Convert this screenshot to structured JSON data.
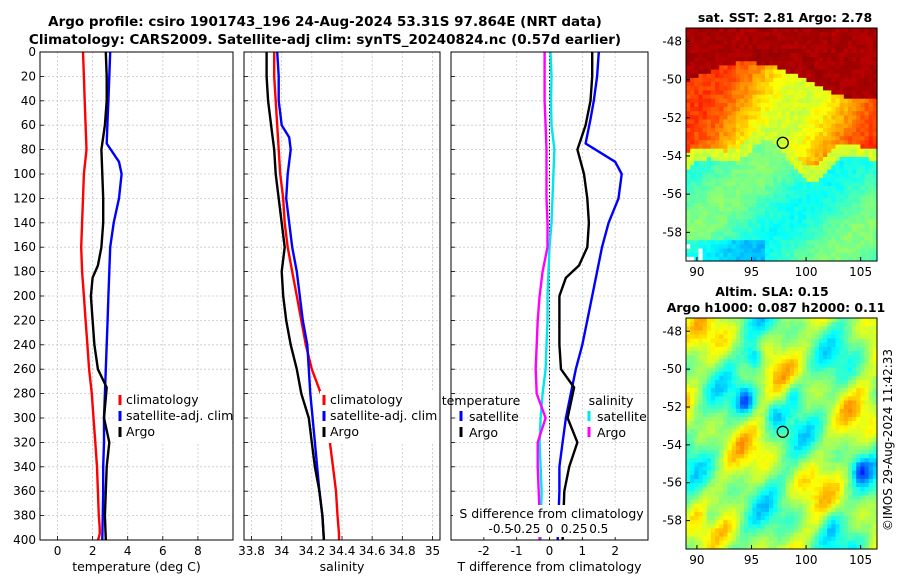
{
  "header": {
    "line1": "Argo profile: csiro 1901743_196 24-Aug-2024 53.31S 97.864E (NRT data)",
    "line2": "Climatology: CARS2009. Satellite-adj clim: synTS_20240824.nc (0.57d earlier)"
  },
  "colors": {
    "climatology": "#ff0000",
    "satellite": "#0000ff",
    "argo": "#000000",
    "sat_salinity": "#00e5ee",
    "argo_salinity": "#ff00ff"
  },
  "chart_data": [
    {
      "type": "line",
      "panel": "temperature",
      "xlabel": "temperature (deg C)",
      "xlim": [
        -1,
        10
      ],
      "xticks": [
        "0",
        "2",
        "4",
        "6",
        "8"
      ],
      "ylim": [
        0,
        400
      ],
      "yticks": [
        "0",
        "20",
        "40",
        "60",
        "80",
        "100",
        "120",
        "140",
        "160",
        "180",
        "200",
        "220",
        "240",
        "260",
        "280",
        "300",
        "320",
        "340",
        "360",
        "380",
        "400"
      ],
      "legend": [
        "climatology",
        "satellite-adj. clim",
        "Argo"
      ],
      "series": [
        {
          "name": "climatology",
          "x": [
            1.45,
            1.5,
            1.55,
            1.6,
            1.65,
            1.5,
            1.45,
            1.4,
            1.35,
            1.4,
            1.5,
            1.6,
            1.7,
            1.8,
            1.95,
            2.05,
            2.15,
            2.25,
            2.3,
            2.35,
            2.4,
            2.4,
            2.35,
            2.3,
            2.3
          ],
          "y": [
            0,
            20,
            40,
            60,
            80,
            100,
            120,
            140,
            160,
            180,
            200,
            220,
            240,
            260,
            280,
            300,
            320,
            340,
            360,
            380,
            390,
            395,
            398,
            400,
            400
          ]
        },
        {
          "name": "satellite-adj. clim",
          "x": [
            3.0,
            2.95,
            2.9,
            2.85,
            2.8,
            3.5,
            3.65,
            3.5,
            3.2,
            3.0,
            2.95,
            2.9,
            2.85,
            2.8,
            2.75,
            2.7,
            2.65,
            2.65,
            2.6,
            2.6,
            2.55
          ],
          "y": [
            0,
            20,
            40,
            55,
            75,
            90,
            100,
            120,
            140,
            160,
            180,
            200,
            220,
            240,
            260,
            280,
            300,
            320,
            340,
            360,
            400
          ]
        },
        {
          "name": "Argo",
          "x": [
            2.75,
            2.8,
            2.8,
            2.7,
            2.5,
            2.55,
            2.6,
            2.6,
            2.5,
            2.3,
            2.0,
            1.9,
            2.0,
            2.1,
            2.3,
            2.8,
            2.65,
            2.95,
            2.8,
            2.75,
            2.7,
            2.75
          ],
          "y": [
            0,
            20,
            40,
            60,
            80,
            100,
            120,
            140,
            160,
            175,
            185,
            200,
            220,
            240,
            260,
            275,
            300,
            320,
            340,
            360,
            380,
            400
          ]
        }
      ]
    },
    {
      "type": "line",
      "panel": "salinity",
      "xlabel": "salinity",
      "xlim": [
        33.75,
        35.05
      ],
      "xticks": [
        "33.8",
        "34",
        "34.2",
        "34.4",
        "34.6",
        "34.8",
        "35"
      ],
      "ylim": [
        0,
        400
      ],
      "legend": [
        "climatology",
        "satellite-adj. clim",
        "Argo"
      ],
      "series": [
        {
          "name": "climatology",
          "x": [
            33.95,
            33.95,
            33.96,
            33.97,
            33.98,
            33.99,
            34.01,
            34.02,
            34.04,
            34.07,
            34.1,
            34.13,
            34.16,
            34.2,
            34.26,
            34.3,
            34.32,
            34.34,
            34.36,
            34.37,
            34.38,
            34.38
          ],
          "y": [
            0,
            20,
            40,
            60,
            80,
            100,
            120,
            140,
            160,
            180,
            200,
            220,
            240,
            260,
            280,
            300,
            320,
            340,
            360,
            380,
            395,
            400
          ]
        },
        {
          "name": "satellite-adj. clim",
          "x": [
            33.97,
            33.98,
            33.98,
            34.0,
            34.05,
            34.06,
            34.05,
            34.04,
            34.03,
            34.05,
            34.07,
            34.1,
            34.12,
            34.14,
            34.17,
            34.19,
            34.22,
            34.25,
            34.27,
            34.28
          ],
          "y": [
            0,
            20,
            40,
            60,
            70,
            80,
            90,
            100,
            120,
            140,
            160,
            180,
            200,
            220,
            240,
            280,
            320,
            360,
            380,
            400
          ]
        },
        {
          "name": "Argo",
          "x": [
            33.9,
            33.9,
            33.91,
            33.93,
            33.95,
            33.96,
            33.98,
            34.0,
            34.02,
            34.0,
            34.01,
            34.03,
            34.06,
            34.1,
            34.13,
            34.18,
            34.2,
            34.22,
            34.25,
            34.27,
            34.28
          ],
          "y": [
            0,
            20,
            40,
            60,
            80,
            100,
            120,
            140,
            160,
            180,
            200,
            220,
            240,
            260,
            280,
            300,
            320,
            340,
            360,
            380,
            400
          ]
        }
      ]
    },
    {
      "type": "line",
      "panel": "differences",
      "xlabel": "T difference from climatology",
      "xlim": [
        -3,
        3
      ],
      "xticks": [
        "-2",
        "-1",
        "0",
        "1",
        "2"
      ],
      "top_axis_label": "S difference from climatology",
      "top_xticks": [
        "-0.5",
        "-0.25",
        "0",
        "0.25",
        "0.5"
      ],
      "ylim": [
        0,
        400
      ],
      "legend_temperature": [
        "temperature",
        "satellite",
        "Argo"
      ],
      "legend_salinity": [
        "salinity",
        "satellite",
        "Argo"
      ],
      "series": [
        {
          "name": "temperature satellite",
          "x": [
            1.5,
            1.45,
            1.35,
            1.25,
            1.1,
            2.0,
            2.2,
            2.1,
            1.8,
            1.6,
            1.45,
            1.3,
            1.15,
            1.0,
            0.8,
            0.65,
            0.5,
            0.4,
            0.3,
            0.3,
            0.25
          ],
          "y": [
            0,
            20,
            40,
            55,
            75,
            90,
            100,
            120,
            140,
            160,
            180,
            200,
            220,
            240,
            260,
            280,
            300,
            320,
            340,
            360,
            400
          ]
        },
        {
          "name": "temperature Argo",
          "x": [
            1.3,
            1.3,
            1.25,
            1.1,
            0.85,
            1.05,
            1.15,
            1.2,
            1.15,
            0.9,
            0.5,
            0.3,
            0.3,
            0.3,
            0.35,
            0.75,
            0.55,
            0.85,
            0.6,
            0.45,
            0.4
          ],
          "y": [
            0,
            20,
            40,
            60,
            80,
            100,
            120,
            140,
            160,
            175,
            185,
            200,
            220,
            240,
            260,
            275,
            300,
            320,
            340,
            360,
            400
          ]
        },
        {
          "name": "salinity satellite",
          "x": [
            0.01,
            0.02,
            0.015,
            0.02,
            0.05,
            0.04,
            0.03,
            0.02,
            0.0,
            -0.01,
            -0.02,
            -0.02,
            -0.03,
            -0.04,
            -0.07,
            -0.09,
            -0.1,
            -0.09,
            -0.08,
            -0.09
          ],
          "y": [
            0,
            20,
            40,
            60,
            80,
            100,
            120,
            140,
            160,
            180,
            200,
            220,
            240,
            260,
            280,
            300,
            320,
            340,
            360,
            400
          ]
        },
        {
          "name": "salinity Argo",
          "x": [
            -0.05,
            -0.05,
            -0.05,
            -0.04,
            -0.03,
            -0.03,
            -0.03,
            -0.02,
            -0.02,
            -0.07,
            -0.1,
            -0.12,
            -0.13,
            -0.14,
            -0.13,
            -0.04,
            -0.12,
            -0.12,
            -0.11,
            -0.1,
            -0.1
          ],
          "y": [
            0,
            20,
            40,
            60,
            80,
            100,
            120,
            140,
            160,
            180,
            200,
            220,
            240,
            260,
            280,
            300,
            320,
            340,
            360,
            380,
            400
          ]
        }
      ]
    },
    {
      "type": "heatmap",
      "panel": "sst_map",
      "title": "sat. SST: 2.81 Argo: 2.78",
      "xticks": [
        "90",
        "95",
        "100",
        "105"
      ],
      "yticks": [
        "-48",
        "-50",
        "-52",
        "-54",
        "-56",
        "-58"
      ],
      "xlim": [
        89,
        106.5
      ],
      "ylim": [
        -59.5,
        -47.3
      ],
      "marker": {
        "lon": 97.864,
        "lat": -53.31
      }
    },
    {
      "type": "heatmap",
      "panel": "sla_map",
      "title_line1": "Altim. SLA: 0.15",
      "title_line2": "Argo h1000: 0.087 h2000: 0.11",
      "xticks": [
        "90",
        "95",
        "100",
        "105"
      ],
      "yticks": [
        "-48",
        "-50",
        "-52",
        "-54",
        "-56",
        "-58"
      ],
      "xlim": [
        89,
        106.5
      ],
      "ylim": [
        -59.5,
        -47.3
      ],
      "marker": {
        "lon": 97.864,
        "lat": -53.31
      }
    }
  ],
  "watermark": "©IMOS 29-Aug-2024 11:42:33"
}
